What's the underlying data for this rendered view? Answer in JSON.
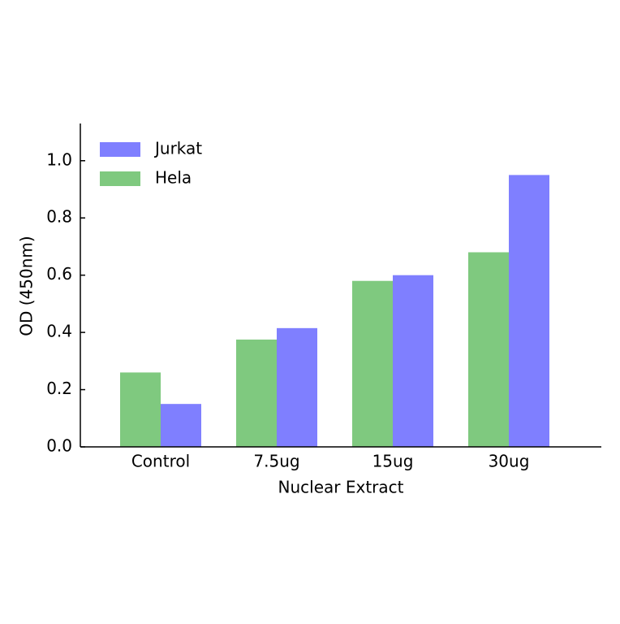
{
  "chart_data": {
    "type": "bar",
    "xlabel": "Nuclear Extract",
    "ylabel": "OD (450nm)",
    "categories": [
      "Control",
      "7.5ug",
      "15ug",
      "30ug"
    ],
    "series": [
      {
        "name": "Hela",
        "color": "#7fc97f",
        "values": [
          0.26,
          0.375,
          0.58,
          0.68
        ]
      },
      {
        "name": "Jurkat",
        "color": "#7f7fff",
        "values": [
          0.15,
          0.415,
          0.6,
          0.95
        ]
      }
    ],
    "ylim": [
      0,
      1.13
    ],
    "yticks": [
      {
        "value": 0,
        "label": "0.0"
      },
      0.2,
      0.4,
      0.6,
      0.8,
      {
        "value": 1,
        "label": "1.0"
      }
    ],
    "legend": "upper left"
  }
}
